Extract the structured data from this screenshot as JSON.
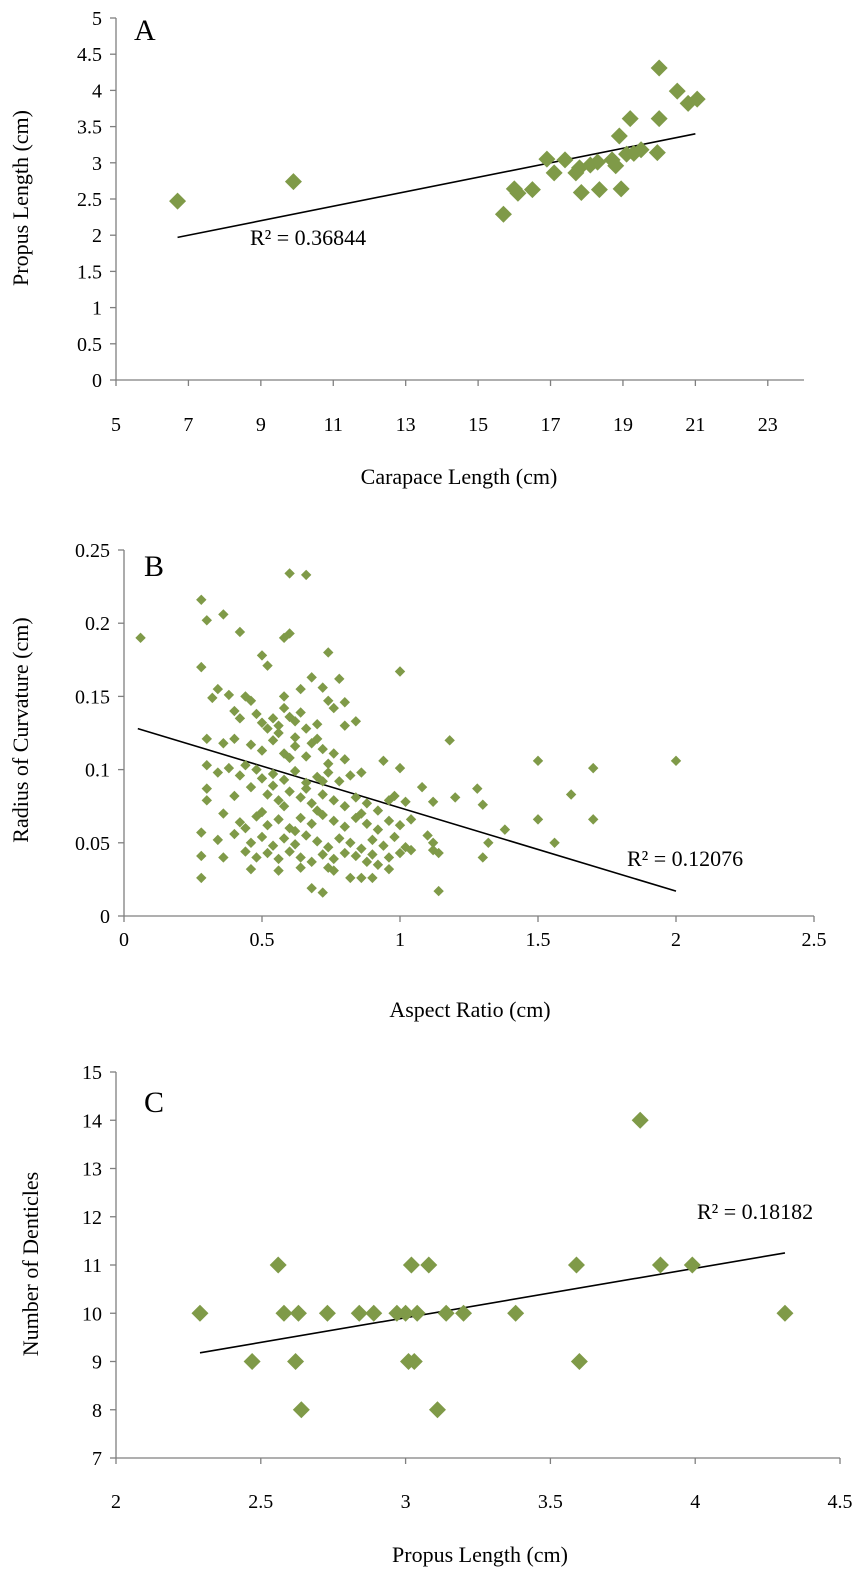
{
  "colors": {
    "marker": "#7f9a48",
    "axis": "#7f7f7f",
    "trendline": "#000000"
  },
  "chart_data": [
    {
      "type": "scatter",
      "panel_label": "A",
      "xlabel": "Carapace Length (cm)",
      "ylabel": "Propus Length (cm)",
      "xlim": [
        5,
        24
      ],
      "ylim": [
        0,
        5
      ],
      "xticks": [
        5,
        7,
        9,
        11,
        13,
        15,
        17,
        19,
        21,
        23
      ],
      "yticks": [
        0,
        0.5,
        1,
        1.5,
        2,
        2.5,
        3,
        3.5,
        4,
        4.5,
        5
      ],
      "grid": false,
      "marker": "diamond",
      "marker_size": "large",
      "r2_label": "R² = 0.36844",
      "trendline": {
        "x1": 6.7,
        "y1": 1.97,
        "x2": 21.0,
        "y2": 3.4
      },
      "points": [
        [
          6.7,
          2.47
        ],
        [
          9.9,
          2.74
        ],
        [
          15.7,
          2.29
        ],
        [
          16.0,
          2.64
        ],
        [
          16.1,
          2.58
        ],
        [
          16.5,
          2.63
        ],
        [
          16.9,
          3.05
        ],
        [
          17.1,
          2.86
        ],
        [
          17.4,
          3.04
        ],
        [
          17.7,
          2.86
        ],
        [
          17.8,
          2.93
        ],
        [
          17.85,
          2.59
        ],
        [
          18.1,
          2.97
        ],
        [
          18.3,
          3.01
        ],
        [
          18.35,
          2.63
        ],
        [
          18.7,
          3.04
        ],
        [
          18.8,
          2.96
        ],
        [
          18.9,
          3.37
        ],
        [
          18.95,
          2.64
        ],
        [
          19.1,
          3.12
        ],
        [
          19.2,
          3.61
        ],
        [
          19.3,
          3.13
        ],
        [
          19.5,
          3.18
        ],
        [
          19.95,
          3.14
        ],
        [
          20.0,
          4.31
        ],
        [
          20.0,
          3.61
        ],
        [
          20.5,
          3.99
        ],
        [
          20.8,
          3.82
        ],
        [
          21.05,
          3.88
        ]
      ]
    },
    {
      "type": "scatter",
      "panel_label": "B",
      "xlabel": "Aspect Ratio (cm)",
      "ylabel": "Radius of Curvature (cm)",
      "xlim": [
        0,
        2.5
      ],
      "ylim": [
        0,
        0.25
      ],
      "xticks": [
        0,
        0.5,
        1,
        1.5,
        2,
        2.5
      ],
      "yticks": [
        0,
        0.05,
        0.1,
        0.15,
        0.2,
        0.25
      ],
      "grid": false,
      "marker": "diamond",
      "marker_size": "small",
      "r2_label": "R² = 0.12076",
      "trendline": {
        "x1": 0.05,
        "y1": 0.128,
        "x2": 2.0,
        "y2": 0.017
      },
      "points": [
        [
          0.06,
          0.19
        ],
        [
          0.28,
          0.216
        ],
        [
          0.3,
          0.202
        ],
        [
          0.36,
          0.206
        ],
        [
          0.42,
          0.194
        ],
        [
          0.6,
          0.234
        ],
        [
          0.66,
          0.233
        ],
        [
          0.58,
          0.19
        ],
        [
          0.6,
          0.193
        ],
        [
          0.5,
          0.178
        ],
        [
          0.52,
          0.171
        ],
        [
          0.28,
          0.17
        ],
        [
          0.74,
          0.18
        ],
        [
          0.68,
          0.163
        ],
        [
          0.72,
          0.156
        ],
        [
          0.78,
          0.162
        ],
        [
          1.0,
          0.167
        ],
        [
          0.34,
          0.155
        ],
        [
          0.32,
          0.149
        ],
        [
          0.38,
          0.151
        ],
        [
          0.44,
          0.15
        ],
        [
          0.46,
          0.147
        ],
        [
          0.4,
          0.14
        ],
        [
          0.42,
          0.135
        ],
        [
          0.48,
          0.138
        ],
        [
          0.5,
          0.132
        ],
        [
          0.52,
          0.128
        ],
        [
          0.54,
          0.135
        ],
        [
          0.56,
          0.13
        ],
        [
          0.58,
          0.142
        ],
        [
          0.6,
          0.136
        ],
        [
          0.62,
          0.133
        ],
        [
          0.64,
          0.139
        ],
        [
          0.66,
          0.128
        ],
        [
          0.7,
          0.131
        ],
        [
          0.74,
          0.147
        ],
        [
          0.76,
          0.142
        ],
        [
          0.8,
          0.146
        ],
        [
          0.84,
          0.133
        ],
        [
          0.8,
          0.13
        ],
        [
          0.3,
          0.121
        ],
        [
          0.36,
          0.118
        ],
        [
          0.4,
          0.121
        ],
        [
          0.46,
          0.117
        ],
        [
          0.5,
          0.113
        ],
        [
          0.54,
          0.12
        ],
        [
          0.58,
          0.111
        ],
        [
          0.62,
          0.116
        ],
        [
          0.66,
          0.109
        ],
        [
          0.7,
          0.121
        ],
        [
          0.72,
          0.114
        ],
        [
          0.76,
          0.111
        ],
        [
          0.8,
          0.107
        ],
        [
          1.18,
          0.12
        ],
        [
          0.3,
          0.103
        ],
        [
          0.34,
          0.098
        ],
        [
          0.38,
          0.101
        ],
        [
          0.42,
          0.096
        ],
        [
          0.48,
          0.1
        ],
        [
          0.5,
          0.094
        ],
        [
          0.54,
          0.097
        ],
        [
          0.58,
          0.093
        ],
        [
          0.62,
          0.099
        ],
        [
          0.66,
          0.091
        ],
        [
          0.7,
          0.095
        ],
        [
          0.74,
          0.098
        ],
        [
          0.78,
          0.092
        ],
        [
          0.82,
          0.096
        ],
        [
          0.86,
          0.098
        ],
        [
          0.94,
          0.106
        ],
        [
          1.0,
          0.101
        ],
        [
          0.3,
          0.087
        ],
        [
          0.4,
          0.082
        ],
        [
          0.46,
          0.088
        ],
        [
          0.52,
          0.083
        ],
        [
          0.56,
          0.079
        ],
        [
          0.6,
          0.085
        ],
        [
          0.64,
          0.081
        ],
        [
          0.68,
          0.077
        ],
        [
          0.72,
          0.083
        ],
        [
          0.76,
          0.079
        ],
        [
          0.8,
          0.075
        ],
        [
          0.84,
          0.081
        ],
        [
          0.88,
          0.077
        ],
        [
          0.92,
          0.072
        ],
        [
          0.96,
          0.079
        ],
        [
          0.98,
          0.082
        ],
        [
          1.02,
          0.078
        ],
        [
          1.08,
          0.088
        ],
        [
          1.12,
          0.078
        ],
        [
          1.2,
          0.081
        ],
        [
          1.28,
          0.087
        ],
        [
          1.3,
          0.076
        ],
        [
          1.5,
          0.106
        ],
        [
          1.7,
          0.101
        ],
        [
          2.0,
          0.106
        ],
        [
          1.62,
          0.083
        ],
        [
          0.3,
          0.079
        ],
        [
          0.36,
          0.07
        ],
        [
          0.42,
          0.064
        ],
        [
          0.48,
          0.068
        ],
        [
          0.52,
          0.062
        ],
        [
          0.56,
          0.066
        ],
        [
          0.6,
          0.06
        ],
        [
          0.64,
          0.067
        ],
        [
          0.68,
          0.063
        ],
        [
          0.72,
          0.069
        ],
        [
          0.76,
          0.065
        ],
        [
          0.8,
          0.061
        ],
        [
          0.84,
          0.067
        ],
        [
          0.88,
          0.063
        ],
        [
          0.92,
          0.059
        ],
        [
          0.96,
          0.065
        ],
        [
          1.0,
          0.062
        ],
        [
          1.04,
          0.066
        ],
        [
          1.5,
          0.066
        ],
        [
          1.7,
          0.066
        ],
        [
          0.28,
          0.057
        ],
        [
          0.34,
          0.052
        ],
        [
          0.4,
          0.056
        ],
        [
          0.46,
          0.05
        ],
        [
          0.5,
          0.054
        ],
        [
          0.54,
          0.048
        ],
        [
          0.58,
          0.053
        ],
        [
          0.62,
          0.049
        ],
        [
          0.66,
          0.055
        ],
        [
          0.7,
          0.051
        ],
        [
          0.74,
          0.047
        ],
        [
          0.78,
          0.053
        ],
        [
          0.82,
          0.05
        ],
        [
          0.86,
          0.046
        ],
        [
          0.9,
          0.052
        ],
        [
          0.94,
          0.048
        ],
        [
          0.98,
          0.054
        ],
        [
          1.02,
          0.047
        ],
        [
          1.1,
          0.055
        ],
        [
          1.12,
          0.05
        ],
        [
          1.32,
          0.05
        ],
        [
          1.38,
          0.059
        ],
        [
          1.56,
          0.05
        ],
        [
          0.28,
          0.041
        ],
        [
          0.36,
          0.04
        ],
        [
          0.44,
          0.044
        ],
        [
          0.48,
          0.04
        ],
        [
          0.52,
          0.043
        ],
        [
          0.56,
          0.039
        ],
        [
          0.6,
          0.044
        ],
        [
          0.64,
          0.04
        ],
        [
          0.68,
          0.037
        ],
        [
          0.72,
          0.042
        ],
        [
          0.76,
          0.039
        ],
        [
          0.8,
          0.043
        ],
        [
          0.84,
          0.041
        ],
        [
          0.88,
          0.037
        ],
        [
          0.92,
          0.035
        ],
        [
          0.96,
          0.04
        ],
        [
          1.0,
          0.043
        ],
        [
          1.04,
          0.045
        ],
        [
          1.12,
          0.045
        ],
        [
          1.14,
          0.043
        ],
        [
          1.3,
          0.04
        ],
        [
          0.28,
          0.026
        ],
        [
          0.46,
          0.032
        ],
        [
          0.56,
          0.031
        ],
        [
          0.64,
          0.033
        ],
        [
          0.68,
          0.019
        ],
        [
          0.72,
          0.016
        ],
        [
          0.74,
          0.033
        ],
        [
          0.76,
          0.031
        ],
        [
          0.82,
          0.026
        ],
        [
          0.86,
          0.026
        ],
        [
          0.9,
          0.026
        ],
        [
          0.96,
          0.032
        ],
        [
          1.14,
          0.017
        ],
        [
          0.58,
          0.15
        ],
        [
          0.64,
          0.155
        ],
        [
          0.56,
          0.125
        ],
        [
          0.62,
          0.122
        ],
        [
          0.68,
          0.118
        ],
        [
          0.74,
          0.104
        ],
        [
          0.66,
          0.087
        ],
        [
          0.58,
          0.075
        ],
        [
          0.7,
          0.072
        ],
        [
          0.62,
          0.058
        ],
        [
          0.86,
          0.07
        ],
        [
          0.9,
          0.042
        ],
        [
          0.44,
          0.103
        ],
        [
          0.54,
          0.089
        ],
        [
          0.5,
          0.071
        ],
        [
          0.44,
          0.06
        ],
        [
          0.72,
          0.092
        ],
        [
          0.6,
          0.108
        ]
      ]
    },
    {
      "type": "scatter",
      "panel_label": "C",
      "xlabel": "Propus Length (cm)",
      "ylabel": "Number of Denticles",
      "xlim": [
        2,
        4.5
      ],
      "ylim": [
        7,
        15
      ],
      "xticks": [
        2,
        2.5,
        3,
        3.5,
        4,
        4.5
      ],
      "yticks": [
        7,
        8,
        9,
        10,
        11,
        12,
        13,
        14,
        15
      ],
      "grid": false,
      "marker": "diamond",
      "marker_size": "large",
      "r2_label": "R² = 0.18182",
      "trendline": {
        "x1": 2.29,
        "y1": 9.18,
        "x2": 4.31,
        "y2": 11.25
      },
      "points": [
        [
          2.29,
          10
        ],
        [
          2.47,
          9
        ],
        [
          2.56,
          11
        ],
        [
          2.58,
          10
        ],
        [
          2.62,
          9
        ],
        [
          2.63,
          10
        ],
        [
          2.64,
          8
        ],
        [
          2.73,
          10
        ],
        [
          2.84,
          10
        ],
        [
          2.89,
          10
        ],
        [
          2.97,
          10
        ],
        [
          3.0,
          10
        ],
        [
          3.01,
          9
        ],
        [
          3.02,
          11
        ],
        [
          3.03,
          9
        ],
        [
          3.04,
          10
        ],
        [
          3.08,
          11
        ],
        [
          3.11,
          8
        ],
        [
          3.14,
          10
        ],
        [
          3.2,
          10
        ],
        [
          3.38,
          10
        ],
        [
          3.59,
          11
        ],
        [
          3.6,
          9
        ],
        [
          3.81,
          14
        ],
        [
          3.88,
          11
        ],
        [
          3.99,
          11
        ],
        [
          4.31,
          10
        ]
      ]
    }
  ]
}
